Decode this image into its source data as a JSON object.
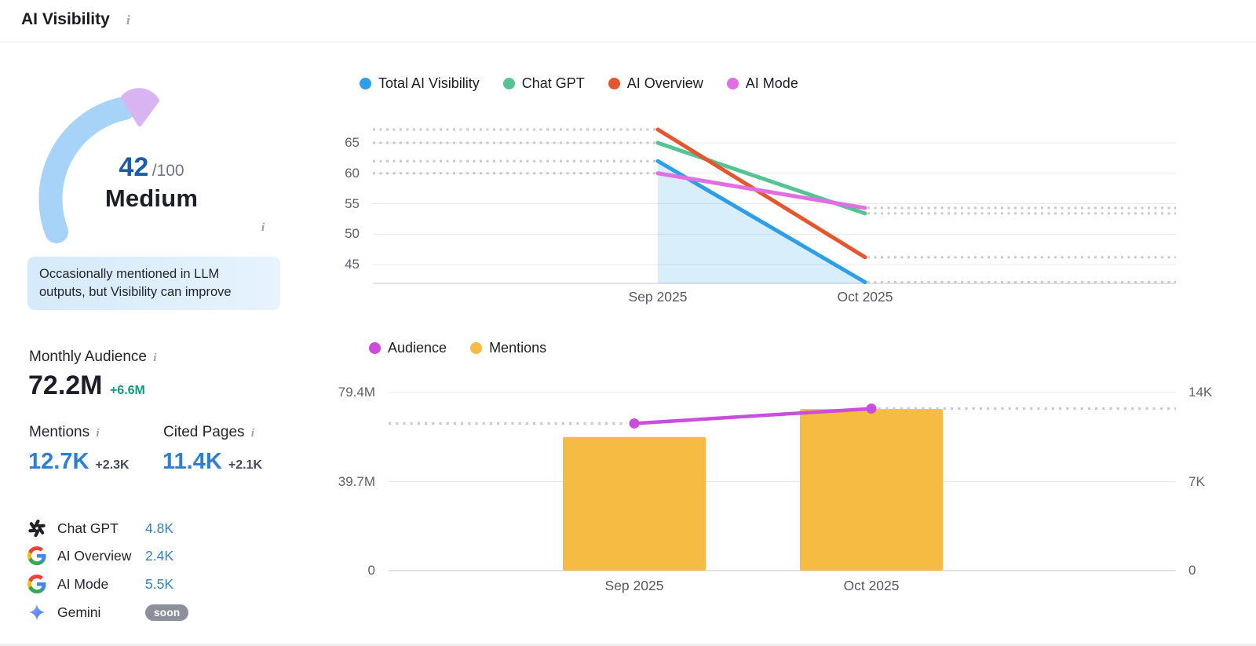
{
  "header": {
    "title": "AI Visibility"
  },
  "icons": {
    "info_glyph": "i"
  },
  "score": {
    "value": "42",
    "max": "/100",
    "rating": "Medium",
    "note": "Occasionally mentioned in LLM outputs, but Visibility can improve",
    "arc_color": "#a7d3f8",
    "pointer_color": "#d9b4f2",
    "value_color": "#1a5cab"
  },
  "metrics": {
    "audience": {
      "label": "Monthly Audience",
      "value": "72.2M",
      "delta": "+6.6M"
    },
    "mentions": {
      "label": "Mentions",
      "value": "12.7K",
      "delta": "+2.3K"
    },
    "cited": {
      "label": "Cited Pages",
      "value": "11.4K",
      "delta": "+2.1K"
    }
  },
  "platforms": [
    {
      "name": "Chat GPT",
      "icon": "chatgpt-icon",
      "value": "4.8K"
    },
    {
      "name": "AI Overview",
      "icon": "google-icon",
      "value": "2.4K"
    },
    {
      "name": "AI Mode",
      "icon": "google-icon",
      "value": "5.5K"
    },
    {
      "name": "Gemini",
      "icon": "gemini-icon",
      "badge": "soon"
    }
  ],
  "chart_data": [
    {
      "type": "line",
      "title": "AI Visibility score by platform",
      "x": [
        "Sep 2025",
        "Oct 2025"
      ],
      "series": [
        {
          "name": "Total AI Visibility",
          "color": "#2d9fe8",
          "values": [
            62.0,
            42.1
          ],
          "area": true
        },
        {
          "name": "Chat GPT",
          "color": "#55c492",
          "values": [
            65.0,
            53.4
          ]
        },
        {
          "name": "AI Overview",
          "color": "#e4572e",
          "values": [
            67.2,
            46.2
          ]
        },
        {
          "name": "AI Mode",
          "color": "#e16ee3",
          "values": [
            60.0,
            54.3
          ]
        }
      ],
      "yticks": [
        {
          "label": "65",
          "value": 65
        },
        {
          "label": "60",
          "value": 60
        },
        {
          "label": "55",
          "value": 55
        },
        {
          "label": "50",
          "value": 50
        },
        {
          "label": "45",
          "value": 45
        }
      ],
      "ylim": [
        41.9,
        68.5
      ],
      "grid": true,
      "legend_position": "top",
      "style_note": "dotted gray lead-in segments before Sep 2025 and lead-out segments after Oct 2025"
    },
    {
      "type": "bar+line",
      "title": "Audience and Mentions",
      "x": [
        "Sep 2025",
        "Oct 2025"
      ],
      "series": [
        {
          "name": "Audience",
          "type": "line",
          "axis": "left",
          "color": "#cb4ddb",
          "values": [
            65.6,
            72.2
          ],
          "unit": "M"
        },
        {
          "name": "Mentions",
          "type": "bar",
          "axis": "right",
          "color": "#f5bb42",
          "values": [
            10.5,
            12.7
          ],
          "unit": "K"
        }
      ],
      "left_yticks": [
        {
          "label": "79.4M",
          "value": 79.4
        },
        {
          "label": "39.7M",
          "value": 39.7
        },
        {
          "label": "0",
          "value": 0
        }
      ],
      "right_yticks": [
        {
          "label": "14K",
          "value": 14
        },
        {
          "label": "7K",
          "value": 7
        },
        {
          "label": "0",
          "value": 0
        }
      ],
      "left_ylim": [
        0,
        84.5
      ],
      "right_ylim": [
        0,
        14.9
      ],
      "grid": true,
      "legend_position": "top"
    }
  ]
}
